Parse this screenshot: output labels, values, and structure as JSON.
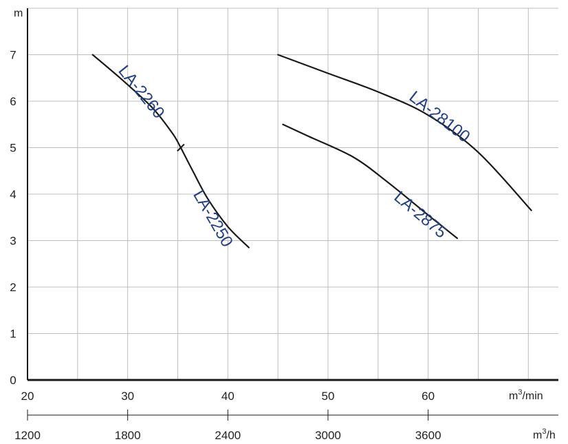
{
  "chart_data": {
    "type": "line",
    "grid": true,
    "xlim": [
      20,
      73
    ],
    "ylim": [
      0,
      8
    ],
    "x_ticks": [
      20,
      30,
      40,
      50,
      60
    ],
    "x_unit_base": "m",
    "x_unit_exp": "3",
    "x_unit_rest": "/min",
    "y_ticks": [
      0,
      1,
      2,
      3,
      4,
      5,
      6,
      7
    ],
    "y_unit": "m",
    "secondary_x_ticks": [
      1200,
      1800,
      2400,
      3000,
      3600
    ],
    "secondary_x_unit_base": "m",
    "secondary_x_unit_exp": "3",
    "secondary_x_unit_rest": "/h",
    "colors": {
      "curve": "#1a1a1a",
      "label": "#1f3f8a",
      "grid": "#bdbdbd",
      "axis": "#1a1a1a"
    },
    "series": [
      {
        "name": "LA-2260",
        "points": [
          [
            26.5,
            7.0
          ],
          [
            29.5,
            6.45
          ],
          [
            32.5,
            5.85
          ],
          [
            34.5,
            5.3
          ],
          [
            35.3,
            5.0
          ]
        ]
      },
      {
        "name": "LA-2250",
        "points": [
          [
            35.3,
            5.0
          ],
          [
            36.5,
            4.5
          ],
          [
            38.0,
            3.9
          ],
          [
            40.0,
            3.3
          ],
          [
            42.1,
            2.85
          ]
        ]
      },
      {
        "name": "LA-28100",
        "points": [
          [
            45.0,
            7.0
          ],
          [
            50.0,
            6.6
          ],
          [
            55.0,
            6.2
          ],
          [
            60.0,
            5.7
          ],
          [
            65.0,
            4.9
          ],
          [
            70.3,
            3.65
          ]
        ]
      },
      {
        "name": "LA-2875",
        "points": [
          [
            45.5,
            5.5
          ],
          [
            48.0,
            5.25
          ],
          [
            52.5,
            4.8
          ],
          [
            56.0,
            4.25
          ],
          [
            60.0,
            3.55
          ],
          [
            62.9,
            3.05
          ]
        ]
      }
    ]
  }
}
